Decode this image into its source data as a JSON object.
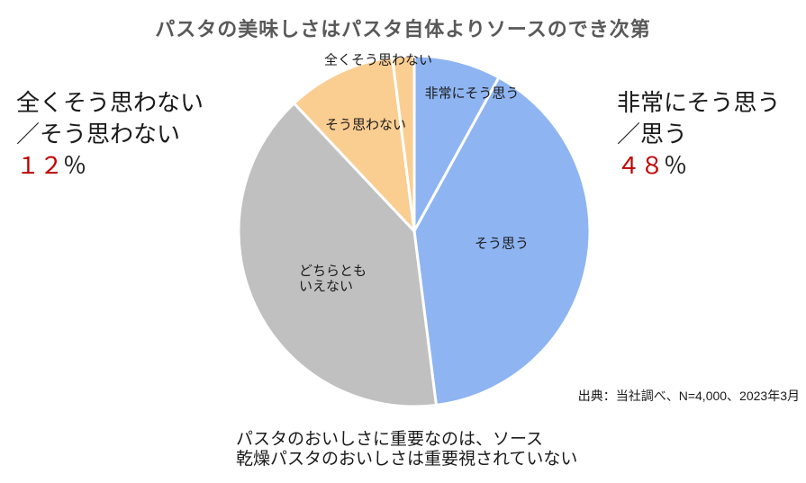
{
  "title": "パスタの美味しさはパスタ自体よりソースのでき次第",
  "chart_data": {
    "type": "pie",
    "title": "パスタの美味しさはパスタ自体よりソースのでき次第",
    "unit": "%",
    "start_angle_deg_from_top": 0,
    "direction": "clockwise",
    "legend": "none",
    "divider_color": "#ffffff",
    "slices": [
      {
        "label": "非常にそう思う",
        "value": 8,
        "color": "#8EB4F2"
      },
      {
        "label": "そう思う",
        "value": 40,
        "color": "#8EB4F2"
      },
      {
        "label": "どちらともいえない",
        "value": 40,
        "color": "#C0C0C0",
        "label_lines": [
          "どちらとも",
          "いえない"
        ]
      },
      {
        "label": "そう思わない",
        "value": 10,
        "color": "#FACD91"
      },
      {
        "label": "全くそう思わない",
        "value": 2,
        "color": "#FACD91"
      }
    ]
  },
  "annotations": {
    "right": {
      "line1": "非常にそう思う",
      "line2": "／思う",
      "value": "４８",
      "unit": "％",
      "value_color": "#C00000",
      "meaning": "agree total 48%"
    },
    "left": {
      "line1": "全くそう思わない",
      "line2": "／そう思わない",
      "value": "１２",
      "unit": "％",
      "value_color": "#C00000",
      "meaning": "disagree total 12%"
    }
  },
  "source_note": "出典：当社調べ、N=4,000、2023年3月",
  "caption": {
    "line1": "パスタのおいしさに重要なのは、ソース",
    "line2": "乾燥パスタのおいしさは重要視されていない"
  }
}
